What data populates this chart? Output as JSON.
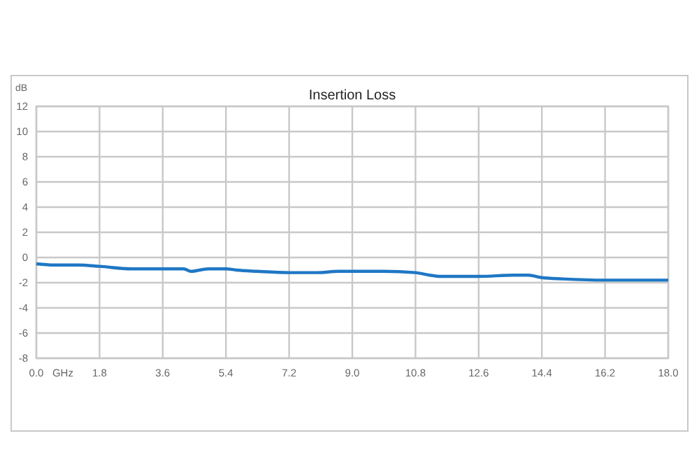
{
  "chart_data": {
    "type": "line",
    "title": "Insertion Loss",
    "xlabel": "GHz",
    "ylabel": "dB",
    "x": [
      0,
      0.5,
      1.2,
      1.8,
      2.7,
      3.6,
      4.2,
      4.4,
      4.9,
      5.4,
      5.7,
      6.3,
      7.2,
      8.0,
      8.6,
      9.0,
      9.9,
      10.8,
      11.2,
      11.5,
      12.0,
      12.6,
      13.6,
      14.0,
      14.4,
      15.0,
      16.2,
      17.0,
      18.0
    ],
    "series": [
      {
        "color": "#1f77c4",
        "values": [
          -0.5,
          -0.6,
          -0.6,
          -0.7,
          -0.9,
          -0.9,
          -0.9,
          -1.1,
          -0.9,
          -0.9,
          -1.0,
          -1.1,
          -1.2,
          -1.2,
          -1.1,
          -1.1,
          -1.1,
          -1.2,
          -1.4,
          -1.5,
          -1.5,
          -1.5,
          -1.4,
          -1.4,
          -1.6,
          -1.7,
          -1.8,
          -1.8,
          -1.8
        ]
      }
    ],
    "xlim": [
      0,
      18
    ],
    "xticks": [
      {
        "value": 0,
        "label": "0.0"
      },
      1.8,
      3.6,
      5.4,
      7.2,
      {
        "value": 9,
        "label": "9.0"
      },
      10.8,
      12.6,
      14.4,
      16.2,
      {
        "value": 18,
        "label": "18.0"
      }
    ],
    "ylim": [
      -8,
      12
    ],
    "yticks": [
      -8,
      -6,
      -4,
      -2,
      0,
      2,
      4,
      6,
      8,
      10,
      12
    ],
    "grid": true,
    "marker": "none",
    "line_style": "solid"
  }
}
